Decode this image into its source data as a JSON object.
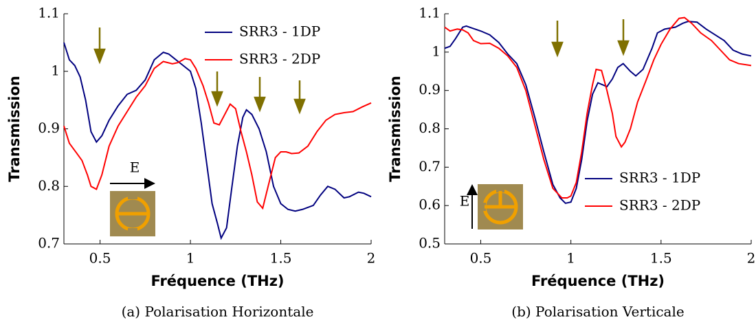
{
  "chart_data": [
    {
      "type": "line",
      "caption": "(a) Polarisation Horizontale",
      "xlabel": "Fréquence (THz)",
      "ylabel": "Transmission",
      "xlim": [
        0.3,
        2
      ],
      "ylim": [
        0.7,
        1.1
      ],
      "xticks": [
        0.5,
        1,
        1.5,
        2
      ],
      "yticks": [
        0.7,
        0.8,
        0.9,
        1,
        1.1
      ],
      "legend": "upper right",
      "annotations": [
        "E"
      ],
      "series": [
        {
          "name": "SRR3 - 1DP",
          "color": "#00007f",
          "x": [
            0.3,
            0.33,
            0.36,
            0.39,
            0.42,
            0.45,
            0.48,
            0.51,
            0.55,
            0.6,
            0.65,
            0.7,
            0.75,
            0.8,
            0.85,
            0.88,
            0.92,
            0.96,
            1.0,
            1.03,
            1.06,
            1.09,
            1.12,
            1.15,
            1.17,
            1.2,
            1.23,
            1.26,
            1.29,
            1.31,
            1.34,
            1.38,
            1.42,
            1.46,
            1.5,
            1.54,
            1.58,
            1.62,
            1.68,
            1.72,
            1.76,
            1.8,
            1.85,
            1.88,
            1.93,
            1.96,
            2.0
          ],
          "values": [
            1.05,
            1.02,
            1.01,
            0.99,
            0.95,
            0.895,
            0.877,
            0.888,
            0.915,
            0.94,
            0.96,
            0.967,
            0.985,
            1.02,
            1.033,
            1.03,
            1.02,
            1.01,
            1.0,
            0.97,
            0.91,
            0.84,
            0.77,
            0.735,
            0.71,
            0.728,
            0.8,
            0.87,
            0.92,
            0.933,
            0.925,
            0.9,
            0.86,
            0.8,
            0.77,
            0.76,
            0.757,
            0.76,
            0.767,
            0.785,
            0.8,
            0.795,
            0.78,
            0.782,
            0.79,
            0.788,
            0.782
          ]
        },
        {
          "name": "SRR3 - 2DP",
          "color": "#ff0000",
          "x": [
            0.3,
            0.33,
            0.37,
            0.4,
            0.43,
            0.45,
            0.48,
            0.51,
            0.55,
            0.6,
            0.65,
            0.7,
            0.75,
            0.8,
            0.85,
            0.9,
            0.93,
            0.97,
            1.0,
            1.03,
            1.07,
            1.1,
            1.13,
            1.16,
            1.19,
            1.22,
            1.25,
            1.28,
            1.31,
            1.34,
            1.37,
            1.4,
            1.43,
            1.47,
            1.5,
            1.53,
            1.56,
            1.6,
            1.65,
            1.7,
            1.75,
            1.8,
            1.85,
            1.9,
            1.95,
            2.0
          ],
          "values": [
            0.905,
            0.875,
            0.858,
            0.845,
            0.82,
            0.8,
            0.795,
            0.82,
            0.87,
            0.905,
            0.93,
            0.955,
            0.975,
            1.005,
            1.017,
            1.013,
            1.015,
            1.022,
            1.02,
            1.005,
            0.975,
            0.945,
            0.91,
            0.907,
            0.925,
            0.943,
            0.935,
            0.895,
            0.86,
            0.82,
            0.773,
            0.762,
            0.8,
            0.85,
            0.86,
            0.86,
            0.857,
            0.858,
            0.87,
            0.895,
            0.915,
            0.925,
            0.928,
            0.93,
            0.938,
            0.945
          ]
        }
      ]
    },
    {
      "type": "line",
      "caption": "(b) Polarisation Verticale",
      "xlabel": "Fréquence (THz)",
      "ylabel": "Transmission",
      "xlim": [
        0.3,
        2
      ],
      "ylim": [
        0.5,
        1.1
      ],
      "xticks": [
        0.5,
        1,
        1.5,
        2
      ],
      "yticks": [
        0.5,
        0.6,
        0.7,
        0.8,
        0.9,
        1,
        1.1
      ],
      "legend": "lower right",
      "annotations": [
        "E"
      ],
      "series": [
        {
          "name": "SRR3 - 1DP",
          "color": "#00007f",
          "x": [
            0.3,
            0.33,
            0.36,
            0.4,
            0.42,
            0.45,
            0.5,
            0.55,
            0.6,
            0.65,
            0.7,
            0.75,
            0.8,
            0.85,
            0.9,
            0.94,
            0.97,
            1.0,
            1.03,
            1.06,
            1.09,
            1.12,
            1.15,
            1.2,
            1.23,
            1.26,
            1.29,
            1.33,
            1.36,
            1.4,
            1.45,
            1.48,
            1.52,
            1.58,
            1.62,
            1.65,
            1.7,
            1.75,
            1.8,
            1.85,
            1.9,
            1.95,
            2.0
          ],
          "values": [
            1.01,
            1.015,
            1.035,
            1.065,
            1.068,
            1.063,
            1.055,
            1.045,
            1.025,
            0.995,
            0.97,
            0.915,
            0.83,
            0.74,
            0.655,
            0.62,
            0.606,
            0.609,
            0.645,
            0.72,
            0.82,
            0.89,
            0.92,
            0.91,
            0.93,
            0.96,
            0.97,
            0.95,
            0.938,
            0.955,
            1.01,
            1.05,
            1.06,
            1.065,
            1.075,
            1.08,
            1.078,
            1.06,
            1.045,
            1.03,
            1.005,
            0.995,
            0.99
          ]
        },
        {
          "name": "SRR3 - 2DP",
          "color": "#ff0000",
          "x": [
            0.3,
            0.33,
            0.37,
            0.4,
            0.43,
            0.46,
            0.5,
            0.55,
            0.6,
            0.65,
            0.7,
            0.75,
            0.8,
            0.85,
            0.9,
            0.95,
            0.98,
            1.0,
            1.03,
            1.06,
            1.09,
            1.12,
            1.14,
            1.17,
            1.2,
            1.23,
            1.25,
            1.28,
            1.3,
            1.33,
            1.37,
            1.42,
            1.46,
            1.5,
            1.55,
            1.6,
            1.63,
            1.67,
            1.72,
            1.78,
            1.82,
            1.88,
            1.93,
            2.0
          ],
          "values": [
            1.065,
            1.055,
            1.06,
            1.058,
            1.05,
            1.03,
            1.022,
            1.023,
            1.01,
            0.99,
            0.96,
            0.9,
            0.81,
            0.72,
            0.645,
            0.62,
            0.62,
            0.625,
            0.66,
            0.74,
            0.84,
            0.915,
            0.955,
            0.952,
            0.9,
            0.84,
            0.78,
            0.753,
            0.765,
            0.8,
            0.87,
            0.93,
            0.98,
            1.02,
            1.06,
            1.088,
            1.09,
            1.075,
            1.05,
            1.03,
            1.01,
            0.98,
            0.97,
            0.965
          ]
        }
      ]
    }
  ]
}
